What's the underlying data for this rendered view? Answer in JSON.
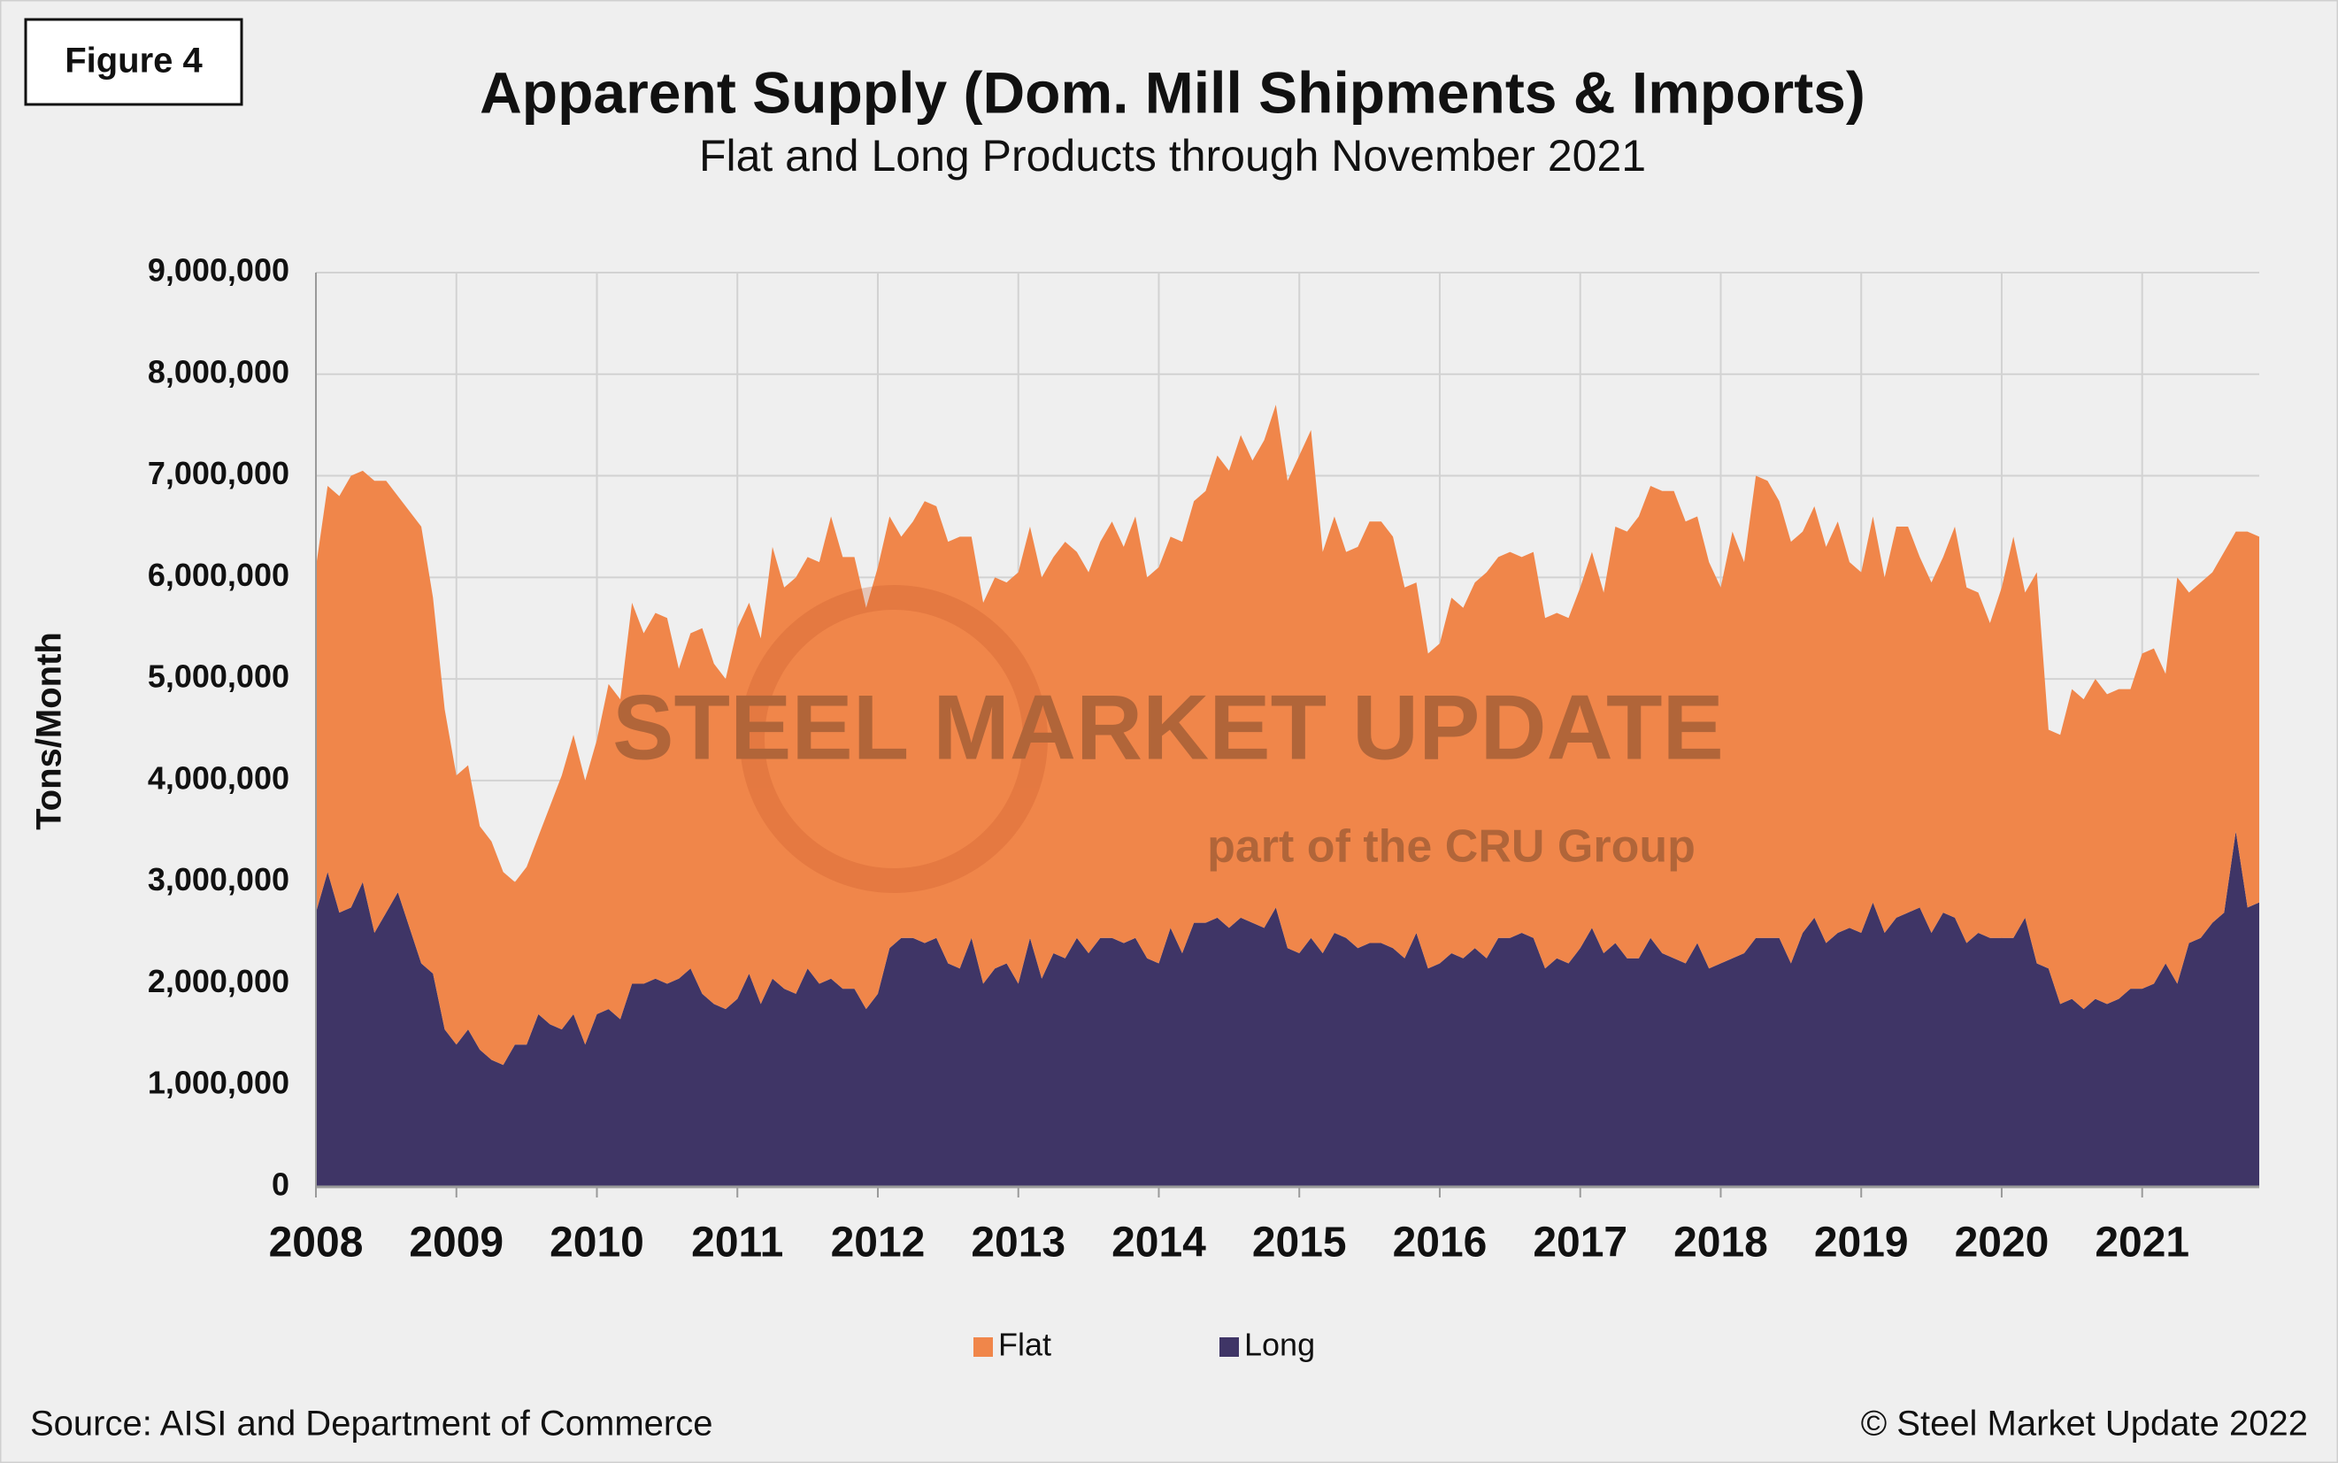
{
  "chart_data": {
    "type": "stacked-area",
    "figure_label": "Figure 4",
    "title": "Apparent Supply (Dom. Mill Shipments & Imports)",
    "subtitle": "Flat and Long Products through November 2021",
    "y_label": "Tons/Month",
    "source": "Source: AISI and Department of Commerce",
    "copyright": "© Steel Market Update 2022",
    "watermark": [
      "STEEL MARKET UPDATE",
      "part of the CRU Group"
    ],
    "grid": true,
    "legend": "bottom",
    "ylim": [
      0,
      9000000
    ],
    "yticks": [
      0,
      {
        "value": 1000000,
        "label": "1,000,000"
      },
      {
        "value": 2000000,
        "label": "2,000,000"
      },
      {
        "value": 3000000,
        "label": "3,000,000"
      },
      {
        "value": 4000000,
        "label": "4,000,000"
      },
      {
        "value": 5000000,
        "label": "5,000,000"
      },
      {
        "value": 6000000,
        "label": "6,000,000"
      },
      {
        "value": 7000000,
        "label": "7,000,000"
      },
      {
        "value": 8000000,
        "label": "8,000,000"
      },
      {
        "value": 9000000,
        "label": "9,000,000"
      }
    ],
    "categories": [
      "2008",
      null,
      null,
      null,
      null,
      null,
      null,
      null,
      null,
      null,
      null,
      null,
      "2009",
      null,
      null,
      null,
      null,
      null,
      null,
      null,
      null,
      null,
      null,
      null,
      "2010",
      null,
      null,
      null,
      null,
      null,
      null,
      null,
      null,
      null,
      null,
      null,
      "2011",
      null,
      null,
      null,
      null,
      null,
      null,
      null,
      null,
      null,
      null,
      null,
      "2012",
      null,
      null,
      null,
      null,
      null,
      null,
      null,
      null,
      null,
      null,
      null,
      "2013",
      null,
      null,
      null,
      null,
      null,
      null,
      null,
      null,
      null,
      null,
      null,
      "2014",
      null,
      null,
      null,
      null,
      null,
      null,
      null,
      null,
      null,
      null,
      null,
      "2015",
      null,
      null,
      null,
      null,
      null,
      null,
      null,
      null,
      null,
      null,
      null,
      "2016",
      null,
      null,
      null,
      null,
      null,
      null,
      null,
      null,
      null,
      null,
      null,
      "2017",
      null,
      null,
      null,
      null,
      null,
      null,
      null,
      null,
      null,
      null,
      null,
      "2018",
      null,
      null,
      null,
      null,
      null,
      null,
      null,
      null,
      null,
      null,
      null,
      "2019",
      null,
      null,
      null,
      null,
      null,
      null,
      null,
      null,
      null,
      null,
      null,
      "2020",
      null,
      null,
      null,
      null,
      null,
      null,
      null,
      null,
      null,
      null,
      null,
      "2021",
      null,
      null,
      null,
      null,
      null,
      null,
      null,
      null,
      null,
      null
    ],
    "series": [
      {
        "name": "Flat",
        "color": "#f0864a",
        "values": [
          3400000,
          3800000,
          4100000,
          4250000,
          4050000,
          4450000,
          4250000,
          3900000,
          4100000,
          4300000,
          3700000,
          3150000,
          2650000,
          2600000,
          2200000,
          2150000,
          1900000,
          1600000,
          1750000,
          1750000,
          2150000,
          2500000,
          2750000,
          2600000,
          2700000,
          3200000,
          3150000,
          3750000,
          3450000,
          3600000,
          3600000,
          3050000,
          3300000,
          3600000,
          3350000,
          3250000,
          3650000,
          3650000,
          3600000,
          4250000,
          3950000,
          4100000,
          4050000,
          4150000,
          4550000,
          4250000,
          4250000,
          3950000,
          4200000,
          4250000,
          3950000,
          4100000,
          4350000,
          4250000,
          4150000,
          4250000,
          3950000,
          3750000,
          3850000,
          3750000,
          4050000,
          4050000,
          3950000,
          3900000,
          4100000,
          3800000,
          3750000,
          3900000,
          4100000,
          3900000,
          4150000,
          3750000,
          3900000,
          3850000,
          4050000,
          4150000,
          4250000,
          4550000,
          4500000,
          4750000,
          4550000,
          4800000,
          4950000,
          4600000,
          4900000,
          5000000,
          3950000,
          4100000,
          3800000,
          3950000,
          4150000,
          4150000,
          4050000,
          3650000,
          3450000,
          3100000,
          3150000,
          3500000,
          3450000,
          3600000,
          3800000,
          3750000,
          3800000,
          3700000,
          3800000,
          3450000,
          3400000,
          3400000,
          3550000,
          3700000,
          3550000,
          4100000,
          4200000,
          4350000,
          4450000,
          4550000,
          4600000,
          4350000,
          4200000,
          4000000,
          3700000,
          4200000,
          3850000,
          4550000,
          4500000,
          4300000,
          4150000,
          3950000,
          4050000,
          3900000,
          4050000,
          3600000,
          3550000,
          3800000,
          3500000,
          3850000,
          3800000,
          3450000,
          3450000,
          3500000,
          3850000,
          3500000,
          3350000,
          3100000,
          3450000,
          3950000,
          3200000,
          3850000,
          2350000,
          2650000,
          3050000,
          3050000,
          3150000,
          3050000,
          3050000,
          2950000,
          3300000,
          3300000,
          2850000,
          4000000,
          3450000,
          3500000,
          3450000,
          3550000,
          2950000,
          3700000,
          3600000
        ]
      },
      {
        "name": "Long",
        "color": "#3f3566",
        "values": [
          2700000,
          3100000,
          2700000,
          2750000,
          3000000,
          2500000,
          2700000,
          2900000,
          2550000,
          2200000,
          2100000,
          1550000,
          1400000,
          1550000,
          1350000,
          1250000,
          1200000,
          1400000,
          1400000,
          1700000,
          1600000,
          1550000,
          1700000,
          1400000,
          1700000,
          1750000,
          1650000,
          2000000,
          2000000,
          2050000,
          2000000,
          2050000,
          2150000,
          1900000,
          1800000,
          1750000,
          1850000,
          2100000,
          1800000,
          2050000,
          1950000,
          1900000,
          2150000,
          2000000,
          2050000,
          1950000,
          1950000,
          1750000,
          1900000,
          2350000,
          2450000,
          2450000,
          2400000,
          2450000,
          2200000,
          2150000,
          2450000,
          2000000,
          2150000,
          2200000,
          2000000,
          2450000,
          2050000,
          2300000,
          2250000,
          2450000,
          2300000,
          2450000,
          2450000,
          2400000,
          2450000,
          2250000,
          2200000,
          2550000,
          2300000,
          2600000,
          2600000,
          2650000,
          2550000,
          2650000,
          2600000,
          2550000,
          2750000,
          2350000,
          2300000,
          2450000,
          2300000,
          2500000,
          2450000,
          2350000,
          2400000,
          2400000,
          2350000,
          2250000,
          2500000,
          2150000,
          2200000,
          2300000,
          2250000,
          2350000,
          2250000,
          2450000,
          2450000,
          2500000,
          2450000,
          2150000,
          2250000,
          2200000,
          2350000,
          2550000,
          2300000,
          2400000,
          2250000,
          2250000,
          2450000,
          2300000,
          2250000,
          2200000,
          2400000,
          2150000,
          2200000,
          2250000,
          2300000,
          2450000,
          2450000,
          2450000,
          2200000,
          2500000,
          2650000,
          2400000,
          2500000,
          2550000,
          2500000,
          2800000,
          2500000,
          2650000,
          2700000,
          2750000,
          2500000,
          2700000,
          2650000,
          2400000,
          2500000,
          2450000,
          2450000,
          2450000,
          2650000,
          2200000,
          2150000,
          1800000,
          1850000,
          1750000,
          1850000,
          1800000,
          1850000,
          1950000,
          1950000,
          2000000,
          2200000,
          2000000,
          2400000,
          2450000,
          2600000,
          2700000,
          3500000,
          2750000,
          2800000
        ]
      }
    ]
  }
}
